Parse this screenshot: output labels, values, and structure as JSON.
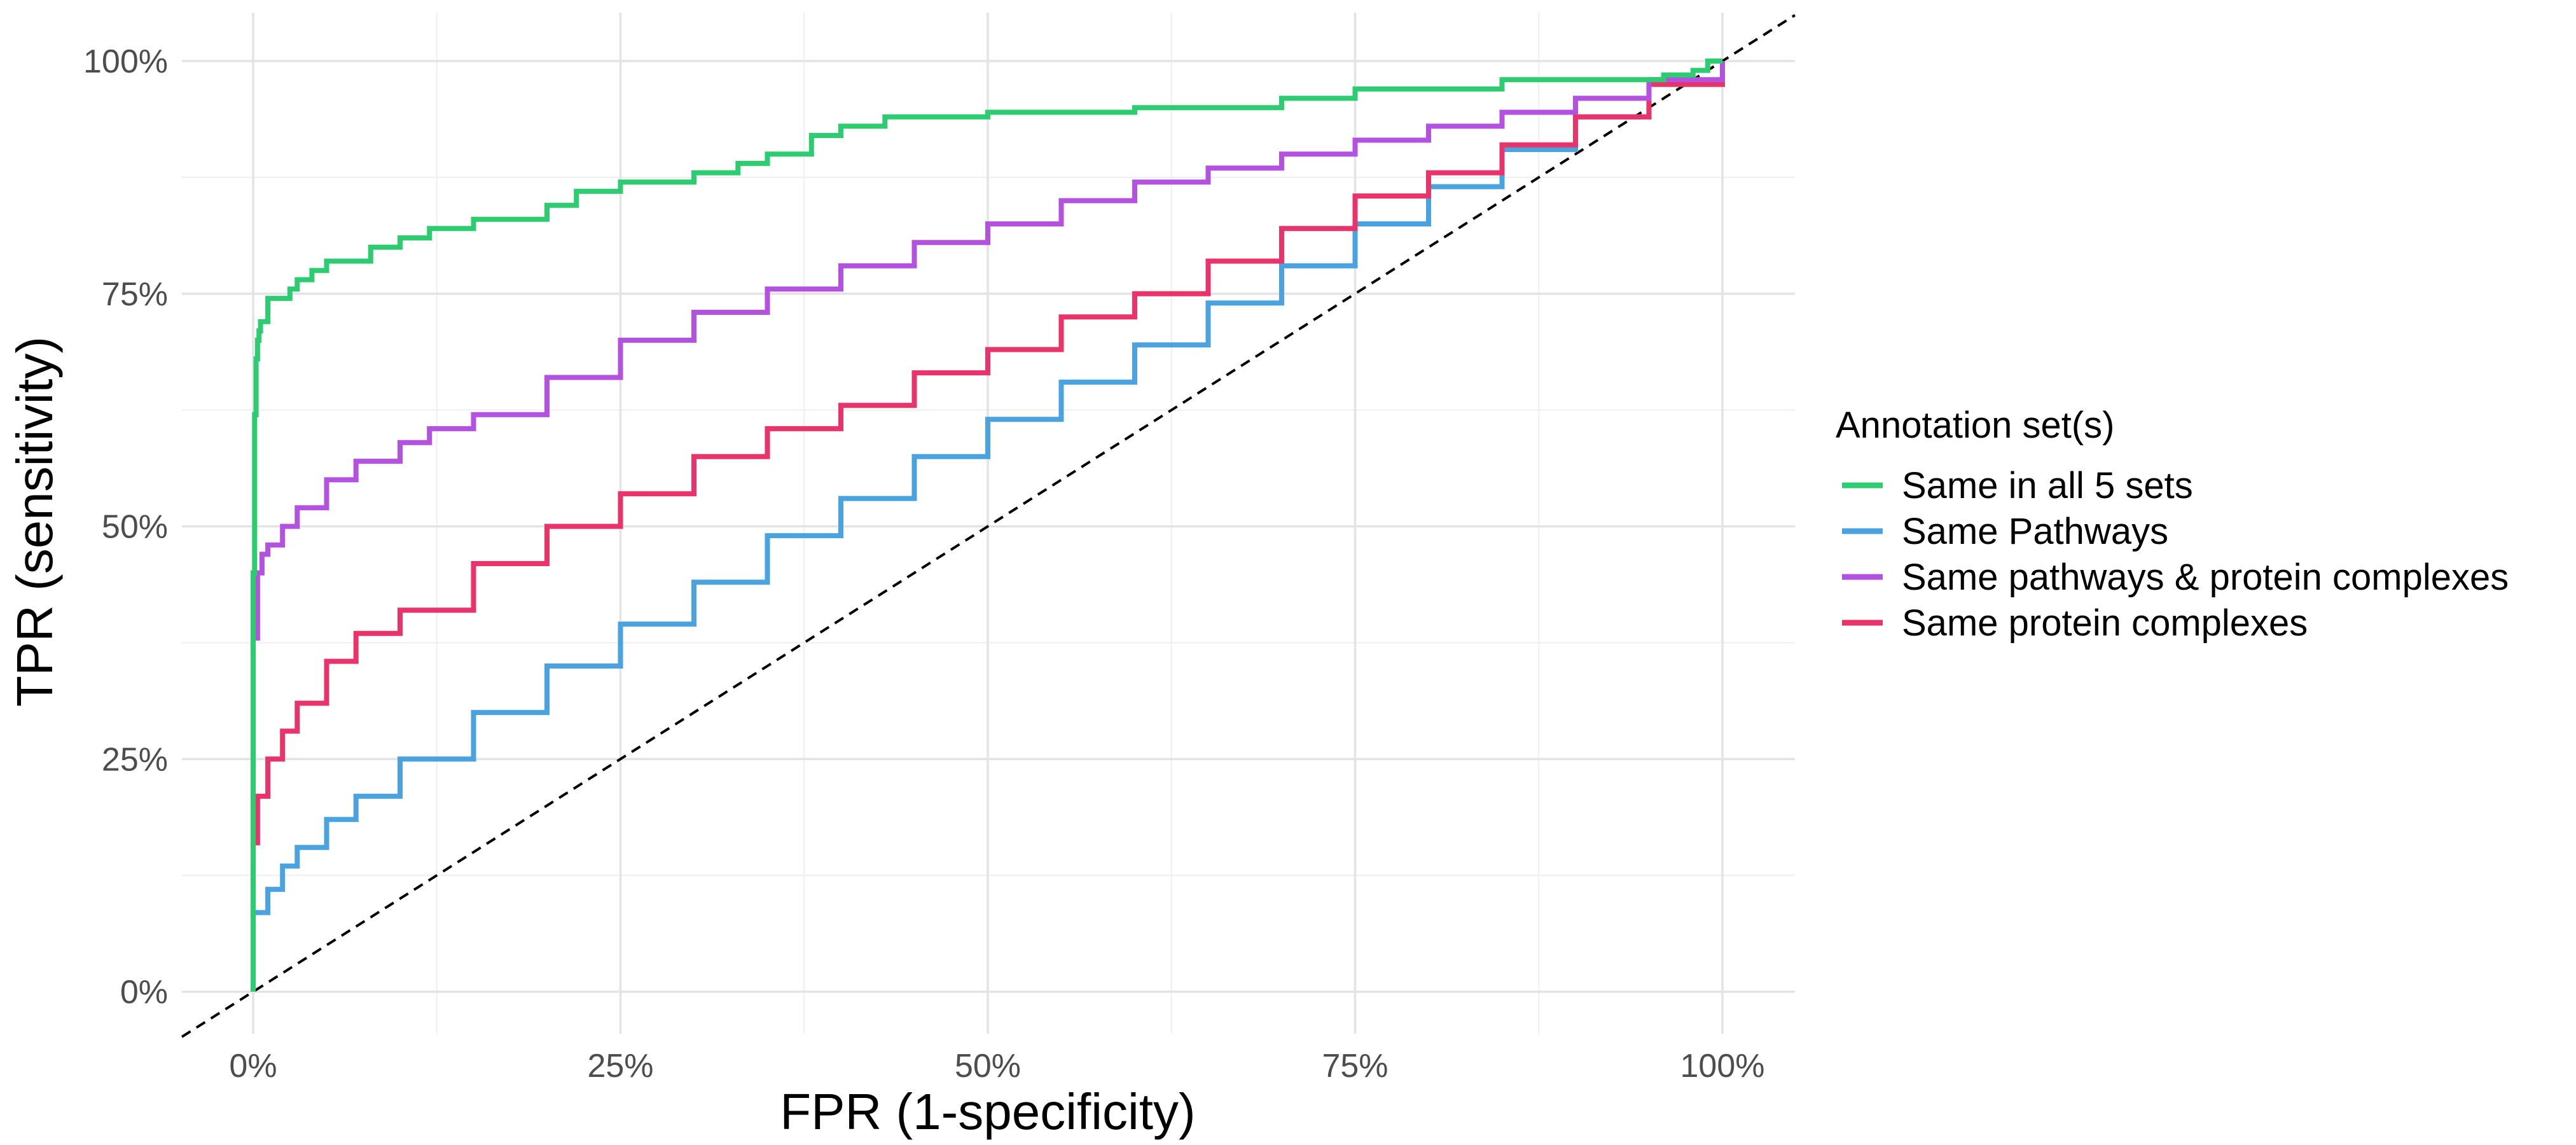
{
  "chart_data": {
    "type": "line",
    "title": "",
    "xlabel": "FPR (1-specificity)",
    "ylabel": "TPR (sensitivity)",
    "xlim": [
      0,
      1
    ],
    "ylim": [
      0,
      1
    ],
    "xticks": [
      0,
      0.25,
      0.5,
      0.75,
      1.0
    ],
    "xtick_labels": [
      "0%",
      "25%",
      "50%",
      "75%",
      "100%"
    ],
    "yticks": [
      0,
      0.25,
      0.5,
      0.75,
      1.0
    ],
    "ytick_labels": [
      "0%",
      "25%",
      "50%",
      "75%",
      "100%"
    ],
    "grid": true,
    "legend": {
      "title": "Annotation set(s)",
      "position": "right"
    },
    "reference_line": {
      "style": "dashed",
      "color": "#000000",
      "points": [
        [
          0,
          0
        ],
        [
          1,
          1
        ]
      ]
    },
    "series": [
      {
        "name": "Same in all 5 sets",
        "color": "#2ecc71",
        "x": [
          0,
          0,
          0.001,
          0.002,
          0.003,
          0.004,
          0.005,
          0.01,
          0.02,
          0.025,
          0.03,
          0.04,
          0.05,
          0.08,
          0.1,
          0.12,
          0.15,
          0.2,
          0.22,
          0.25,
          0.3,
          0.33,
          0.35,
          0.38,
          0.4,
          0.43,
          0.5,
          0.6,
          0.7,
          0.75,
          0.85,
          0.93,
          0.96,
          0.98,
          0.99,
          1.0
        ],
        "y": [
          0,
          0.45,
          0.62,
          0.68,
          0.7,
          0.71,
          0.72,
          0.745,
          0.745,
          0.755,
          0.765,
          0.775,
          0.785,
          0.8,
          0.81,
          0.82,
          0.83,
          0.845,
          0.86,
          0.87,
          0.88,
          0.89,
          0.9,
          0.92,
          0.93,
          0.94,
          0.945,
          0.95,
          0.96,
          0.97,
          0.98,
          0.98,
          0.985,
          0.99,
          1.0,
          1.0
        ]
      },
      {
        "name": "Same Pathways",
        "color": "#4aa3df",
        "x": [
          0,
          0,
          0.01,
          0.02,
          0.03,
          0.05,
          0.07,
          0.1,
          0.15,
          0.2,
          0.25,
          0.3,
          0.35,
          0.4,
          0.45,
          0.5,
          0.55,
          0.6,
          0.65,
          0.7,
          0.75,
          0.8,
          0.85,
          0.9,
          0.95,
          1.0
        ],
        "y": [
          0,
          0.085,
          0.11,
          0.135,
          0.155,
          0.185,
          0.21,
          0.25,
          0.3,
          0.35,
          0.395,
          0.44,
          0.49,
          0.53,
          0.575,
          0.615,
          0.655,
          0.695,
          0.74,
          0.78,
          0.825,
          0.865,
          0.905,
          0.94,
          0.975,
          1.0
        ]
      },
      {
        "name": "Same pathways & protein complexes",
        "color": "#b452e0",
        "x": [
          0,
          0,
          0.003,
          0.006,
          0.01,
          0.02,
          0.03,
          0.05,
          0.07,
          0.1,
          0.12,
          0.15,
          0.2,
          0.25,
          0.3,
          0.35,
          0.4,
          0.45,
          0.5,
          0.55,
          0.6,
          0.65,
          0.7,
          0.75,
          0.8,
          0.85,
          0.9,
          0.95,
          1.0
        ],
        "y": [
          0,
          0.38,
          0.45,
          0.47,
          0.48,
          0.5,
          0.52,
          0.55,
          0.57,
          0.59,
          0.605,
          0.62,
          0.66,
          0.7,
          0.73,
          0.755,
          0.78,
          0.805,
          0.825,
          0.85,
          0.87,
          0.885,
          0.9,
          0.915,
          0.93,
          0.945,
          0.96,
          0.98,
          1.0
        ]
      },
      {
        "name": "Same protein complexes",
        "color": "#e8336b",
        "x": [
          0,
          0,
          0.003,
          0.01,
          0.02,
          0.03,
          0.05,
          0.07,
          0.1,
          0.15,
          0.2,
          0.25,
          0.3,
          0.35,
          0.4,
          0.45,
          0.5,
          0.55,
          0.6,
          0.65,
          0.7,
          0.75,
          0.8,
          0.85,
          0.9,
          0.95,
          1.0
        ],
        "y": [
          0,
          0.16,
          0.21,
          0.25,
          0.28,
          0.31,
          0.355,
          0.385,
          0.41,
          0.46,
          0.5,
          0.535,
          0.575,
          0.605,
          0.63,
          0.665,
          0.69,
          0.725,
          0.75,
          0.785,
          0.82,
          0.855,
          0.88,
          0.91,
          0.94,
          0.975,
          1.0
        ]
      }
    ]
  }
}
